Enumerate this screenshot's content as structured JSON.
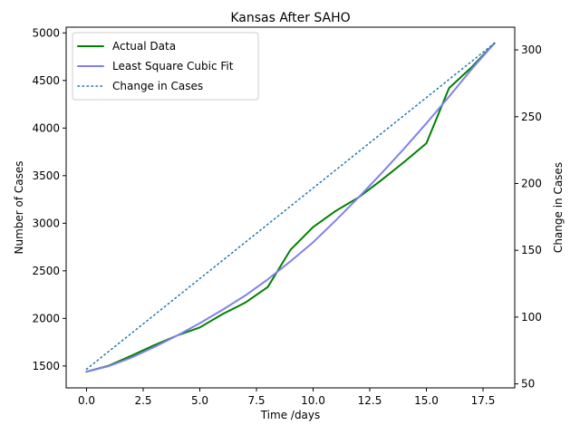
{
  "chart_data": {
    "type": "line",
    "title": "Kansas After SAHO",
    "xlabel": "Time /days",
    "ylabel": "Number of Cases",
    "y2label": "Change in Cases",
    "xlim": [
      -0.9,
      18.9
    ],
    "ylim": [
      1270,
      5060
    ],
    "y2lim": [
      47,
      317
    ],
    "xticks": [
      0.0,
      2.5,
      5.0,
      7.5,
      10.0,
      12.5,
      15.0,
      17.5
    ],
    "xtick_labels": [
      "0.0",
      "2.5",
      "5.0",
      "7.5",
      "10.0",
      "12.5",
      "15.0",
      "17.5"
    ],
    "yticks": [
      1500,
      2000,
      2500,
      3000,
      3500,
      4000,
      4500,
      5000
    ],
    "ytick_labels": [
      "1500",
      "2000",
      "2500",
      "3000",
      "3500",
      "4000",
      "4500",
      "5000"
    ],
    "y2ticks": [
      50,
      100,
      150,
      200,
      250,
      300
    ],
    "y2tick_labels": [
      "50",
      "100",
      "150",
      "200",
      "250",
      "300"
    ],
    "legend_position": "top-left",
    "grid": false,
    "series": [
      {
        "name": "Actual Data",
        "axis": "left",
        "style": "solid",
        "color": "#008000",
        "x": [
          0,
          1,
          2,
          3,
          4,
          5,
          6,
          7,
          8,
          9,
          10,
          11,
          12,
          13,
          14,
          15,
          16,
          17,
          18
        ],
        "y": [
          1440,
          1505,
          1610,
          1720,
          1820,
          1905,
          2045,
          2165,
          2330,
          2720,
          2960,
          3130,
          3270,
          3450,
          3640,
          3840,
          4420,
          4640,
          4890
        ]
      },
      {
        "name": "Least Square Cubic Fit",
        "axis": "left",
        "style": "solid",
        "color": "#8080f0",
        "x": [
          0,
          1,
          2,
          3,
          4,
          5,
          6,
          7,
          8,
          9,
          10,
          11,
          12,
          13,
          14,
          15,
          16,
          17,
          18
        ],
        "y": [
          1440,
          1500,
          1590,
          1700,
          1820,
          1950,
          2090,
          2240,
          2410,
          2600,
          2800,
          3030,
          3270,
          3520,
          3780,
          4050,
          4330,
          4620,
          4890
        ]
      },
      {
        "name": "Change in Cases",
        "axis": "right",
        "style": "dotted",
        "color": "#1f77b4",
        "x": [
          0,
          18
        ],
        "y": [
          61,
          305
        ]
      }
    ]
  }
}
